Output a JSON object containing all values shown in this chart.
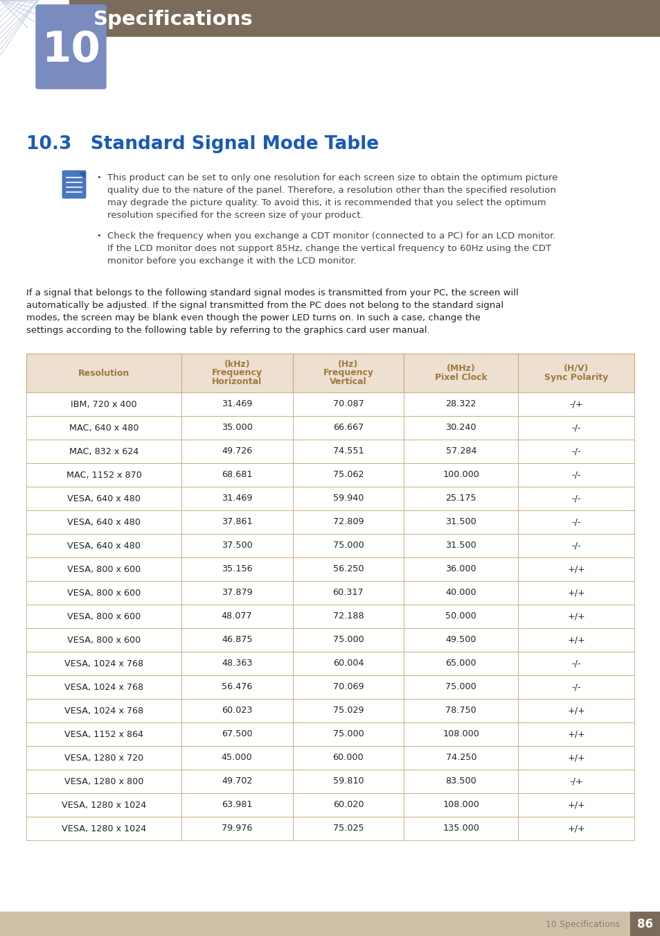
{
  "page_bg": "#ffffff",
  "header_bar_color": "#7a6b5a",
  "chapter_num_color": "#7a8cbf",
  "chapter_title": "Specifications",
  "chapter_title_color": "#1a3a8a",
  "section_title": "10.3   Standard Signal Mode Table",
  "section_title_color": "#1a5ab4",
  "body_text_color": "#222222",
  "note_text_color": "#444444",
  "intro_text_color": "#222222",
  "bullet1_lines": [
    "This product can be set to only one resolution for each screen size to obtain the optimum picture",
    "quality due to the nature of the panel. Therefore, a resolution other than the specified resolution",
    "may degrade the picture quality. To avoid this, it is recommended that you select the optimum",
    "resolution specified for the screen size of your product."
  ],
  "bullet2_lines": [
    "Check the frequency when you exchange a CDT monitor (connected to a PC) for an LCD monitor.",
    "If the LCD monitor does not support 85Hz, change the vertical frequency to 60Hz using the CDT",
    "monitor before you exchange it with the LCD monitor."
  ],
  "intro_lines": [
    "If a signal that belongs to the following standard signal modes is transmitted from your PC, the screen will",
    "automatically be adjusted. If the signal transmitted from the PC does not belong to the standard signal",
    "modes, the screen may be blank even though the power LED turns on. In such a case, change the",
    "settings according to the following table by referring to the graphics card user manual."
  ],
  "table_header_bg": "#ede0d0",
  "table_header_text_color": "#a07840",
  "table_row_bg1": "#ffffff",
  "table_row_bg2": "#ffffff",
  "table_border_color": "#c8a878",
  "table_headers": [
    "Resolution",
    "Horizontal\nFrequency\n(kHz)",
    "Vertical\nFrequency\n(Hz)",
    "Pixel Clock\n(MHz)",
    "Sync Polarity\n(H/V)"
  ],
  "table_data": [
    [
      "IBM, 720 x 400",
      "31.469",
      "70.087",
      "28.322",
      "-/+"
    ],
    [
      "MAC, 640 x 480",
      "35.000",
      "66.667",
      "30.240",
      "-/-"
    ],
    [
      "MAC, 832 x 624",
      "49.726",
      "74.551",
      "57.284",
      "-/-"
    ],
    [
      "MAC, 1152 x 870",
      "68.681",
      "75.062",
      "100.000",
      "-/-"
    ],
    [
      "VESA, 640 x 480",
      "31.469",
      "59.940",
      "25.175",
      "-/-"
    ],
    [
      "VESA, 640 x 480",
      "37.861",
      "72.809",
      "31.500",
      "-/-"
    ],
    [
      "VESA, 640 x 480",
      "37.500",
      "75.000",
      "31.500",
      "-/-"
    ],
    [
      "VESA, 800 x 600",
      "35.156",
      "56.250",
      "36.000",
      "+/+"
    ],
    [
      "VESA, 800 x 600",
      "37.879",
      "60.317",
      "40.000",
      "+/+"
    ],
    [
      "VESA, 800 x 600",
      "48.077",
      "72.188",
      "50.000",
      "+/+"
    ],
    [
      "VESA, 800 x 600",
      "46.875",
      "75.000",
      "49.500",
      "+/+"
    ],
    [
      "VESA, 1024 x 768",
      "48.363",
      "60.004",
      "65.000",
      "-/-"
    ],
    [
      "VESA, 1024 x 768",
      "56.476",
      "70.069",
      "75.000",
      "-/-"
    ],
    [
      "VESA, 1024 x 768",
      "60.023",
      "75.029",
      "78.750",
      "+/+"
    ],
    [
      "VESA, 1152 x 864",
      "67.500",
      "75.000",
      "108.000",
      "+/+"
    ],
    [
      "VESA, 1280 x 720",
      "45.000",
      "60.000",
      "74.250",
      "+/+"
    ],
    [
      "VESA, 1280 x 800",
      "49.702",
      "59.810",
      "83.500",
      "-/+"
    ],
    [
      "VESA, 1280 x 1024",
      "63.981",
      "60.020",
      "108.000",
      "+/+"
    ],
    [
      "VESA, 1280 x 1024",
      "79.976",
      "75.025",
      "135.000",
      "+/+"
    ]
  ],
  "footer_bg": "#cfc0a8",
  "footer_text": "10 Specifications",
  "footer_text_color": "#888070",
  "footer_page": "86",
  "footer_page_bg": "#7a6b5a",
  "stripe_color": "#d0d8e8",
  "diagonal_line_color": "#c8d0e0"
}
